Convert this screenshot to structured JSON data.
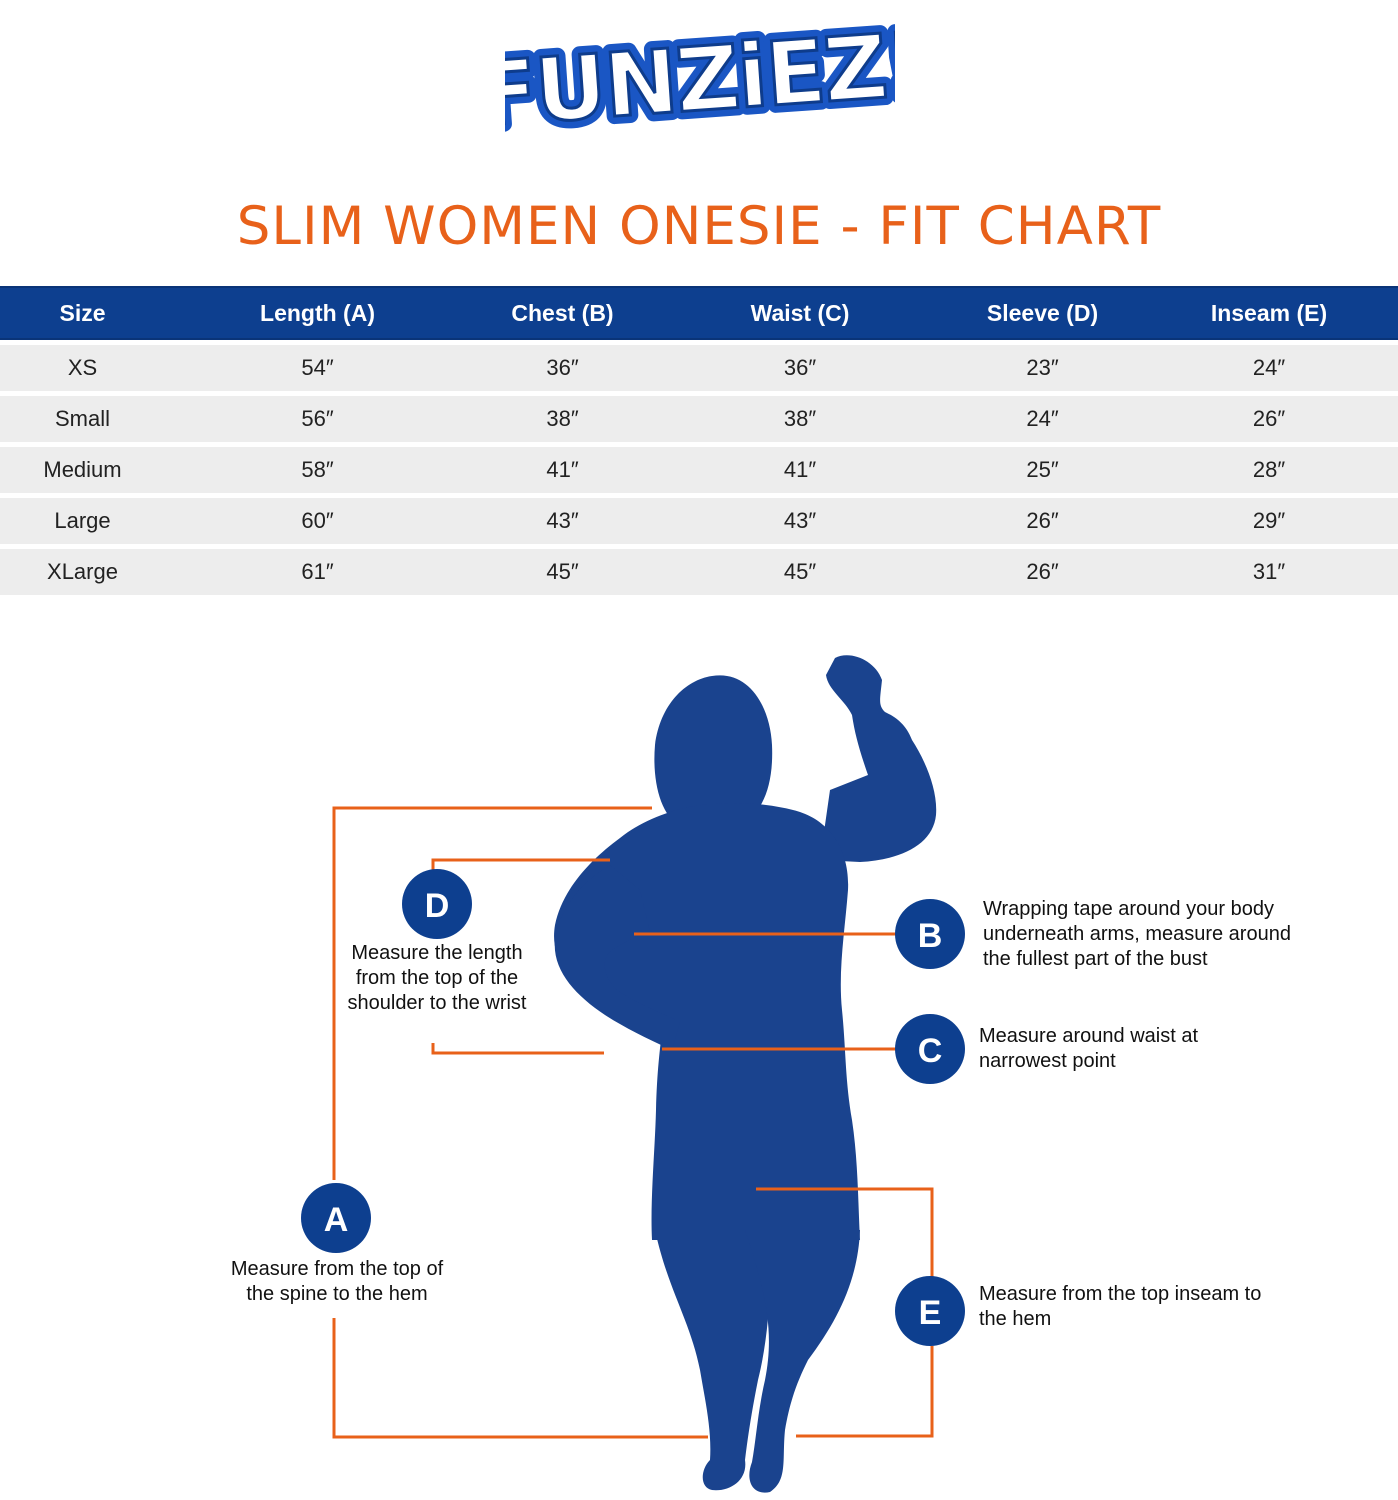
{
  "logo": {
    "text": "FUNZiEZ!",
    "colors": {
      "fill": "#ffffff",
      "outline": "#1a56c4"
    }
  },
  "title": "SLIM WOMEN ONESIE - FIT CHART",
  "colors": {
    "title": "#e8611a",
    "header_bg": "#0d3f8f",
    "row_bg": "#ededed",
    "figure": "#1a438e",
    "guide": "#e8611a"
  },
  "table": {
    "headers": [
      "Size",
      "Length (A)",
      "Chest (B)",
      "Waist (C)",
      "Sleeve (D)",
      "Inseam (E)"
    ],
    "rows": [
      [
        "XS",
        "54″",
        "36″",
        "36″",
        "23″",
        "24″"
      ],
      [
        "Small",
        "56″",
        "38″",
        "38″",
        "24″",
        "26″"
      ],
      [
        "Medium",
        "58″",
        "41″",
        "41″",
        "25″",
        "28″"
      ],
      [
        "Large",
        "60″",
        "43″",
        "43″",
        "26″",
        "29″"
      ],
      [
        "XLarge",
        "61″",
        "45″",
        "45″",
        "26″",
        "31″"
      ]
    ]
  },
  "measurements": {
    "a": {
      "letter": "A",
      "text": "Measure from the top of the spine to the hem"
    },
    "b": {
      "letter": "B",
      "text": "Wrapping tape around your body underneath arms, measure around the fullest part of the bust"
    },
    "c": {
      "letter": "C",
      "text": "Measure around waist at narrowest point"
    },
    "d": {
      "letter": "D",
      "text": "Measure the length from the top of the shoulder to the wrist"
    },
    "e": {
      "letter": "E",
      "text": "Measure from the top inseam to the hem"
    }
  }
}
